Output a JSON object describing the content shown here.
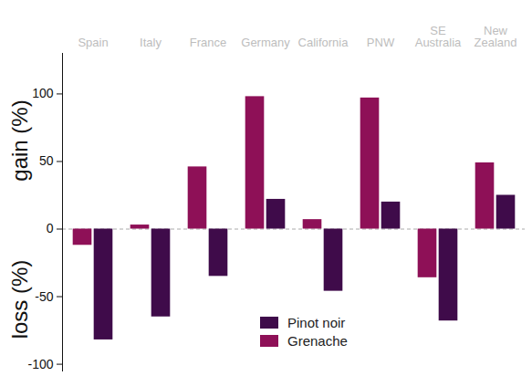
{
  "chart_data": {
    "type": "bar",
    "categories": [
      "Spain",
      "Italy",
      "France",
      "Germany",
      "California",
      "PNW",
      "SE Australia",
      "New Zealand"
    ],
    "series": [
      {
        "name": "Grenache",
        "color": "#8e1057",
        "values": [
          -12,
          3,
          46,
          98,
          7,
          97,
          -36,
          49
        ]
      },
      {
        "name": "Pinot noir",
        "color": "#3f0b4a",
        "values": [
          -82,
          -65,
          -35,
          22,
          -46,
          20,
          -68,
          25
        ]
      }
    ],
    "ylabel": [
      "gain (%)",
      "loss (%)"
    ],
    "ylim": [
      -105,
      130
    ],
    "yticks": [
      -100,
      -50,
      0,
      50,
      100
    ],
    "grid": false,
    "legend": "bottom"
  }
}
